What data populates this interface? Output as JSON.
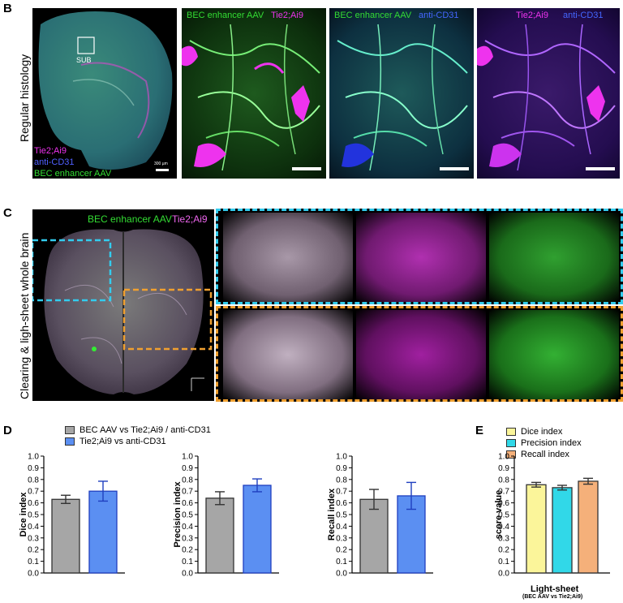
{
  "panels": {
    "B": {
      "letter": "B",
      "row_label": "Regular histology",
      "overview": {
        "box_label": "SUB",
        "legend": [
          "Tie2;Ai9",
          "anti-CD31",
          "BEC enhancer AAV"
        ],
        "scalebar": "300 µm"
      },
      "tile1": {
        "label_a": "BEC enhancer AAV",
        "label_b": "Tie2;Ai9"
      },
      "tile2": {
        "label_a": "BEC enhancer AAV",
        "label_b": "anti-CD31"
      },
      "tile3": {
        "label_a": "Tie2;Ai9",
        "label_b": "anti-CD31"
      }
    },
    "C": {
      "letter": "C",
      "row_label": "Clearing & ligh-sheet  whole brain",
      "overview": {
        "label_a": "BEC enhancer AAV",
        "label_b": "Tie2;Ai9"
      }
    },
    "D": {
      "letter": "D",
      "legend": [
        "BEC AAV vs Tie2;Ai9 / anti-CD31",
        "Tie2;Ai9 vs anti-CD31"
      ]
    },
    "E": {
      "letter": "E",
      "legend": [
        "Dice index",
        "Precision index",
        "Recall index"
      ],
      "xlabel_main": "Light-sheet",
      "xlabel_sub": "(BEC AAV vs Tie2;Ai9)"
    }
  },
  "colors": {
    "green": "#33dd33",
    "magenta": "#ee33ee",
    "blue": "#3344ff",
    "cyan_dash": "#33ccee",
    "orange_dash": "#f0a030",
    "gray_bar": "#a6a6a6",
    "blue_bar": "#5b8ff2",
    "dice_bar": "#fbf59a",
    "precision_bar": "#31d8e8",
    "recall_bar": "#f5b07a"
  },
  "chart_data": [
    {
      "type": "bar",
      "ylabel": "Dice index",
      "ylim": [
        0,
        1.0
      ],
      "yticks": [
        "0.0",
        "0.1",
        "0.2",
        "0.3",
        "0.4",
        "0.5",
        "0.6",
        "0.7",
        "0.8",
        "0.9",
        "1.0"
      ],
      "categories": [
        "BEC AAV vs Tie2;Ai9 / anti-CD31",
        "Tie2;Ai9 vs anti-CD31"
      ],
      "values": [
        0.63,
        0.7
      ],
      "errors": [
        0.035,
        0.085
      ]
    },
    {
      "type": "bar",
      "ylabel": "Precision index",
      "ylim": [
        0,
        1.0
      ],
      "yticks": [
        "0.0",
        "0.1",
        "0.2",
        "0.3",
        "0.4",
        "0.5",
        "0.6",
        "0.7",
        "0.8",
        "0.9",
        "1.0"
      ],
      "categories": [
        "BEC AAV vs Tie2;Ai9 / anti-CD31",
        "Tie2;Ai9 vs anti-CD31"
      ],
      "values": [
        0.64,
        0.75
      ],
      "errors": [
        0.055,
        0.055
      ]
    },
    {
      "type": "bar",
      "ylabel": "Recall index",
      "ylim": [
        0,
        1.0
      ],
      "yticks": [
        "0.0",
        "0.1",
        "0.2",
        "0.3",
        "0.4",
        "0.5",
        "0.6",
        "0.7",
        "0.8",
        "0.9",
        "1.0"
      ],
      "categories": [
        "BEC AAV vs Tie2;Ai9 / anti-CD31",
        "Tie2;Ai9 vs anti-CD31"
      ],
      "values": [
        0.63,
        0.66
      ],
      "errors": [
        0.085,
        0.115
      ]
    },
    {
      "type": "bar",
      "ylabel": "score value",
      "ylim": [
        0,
        1.0
      ],
      "yticks": [
        "0.0",
        "0.1",
        "0.2",
        "0.3",
        "0.4",
        "0.5",
        "0.6",
        "0.7",
        "0.8",
        "0.9",
        "1.0"
      ],
      "categories": [
        "Dice index",
        "Precision index",
        "Recall index"
      ],
      "values": [
        0.755,
        0.73,
        0.785
      ],
      "errors": [
        0.02,
        0.02,
        0.025
      ]
    }
  ]
}
